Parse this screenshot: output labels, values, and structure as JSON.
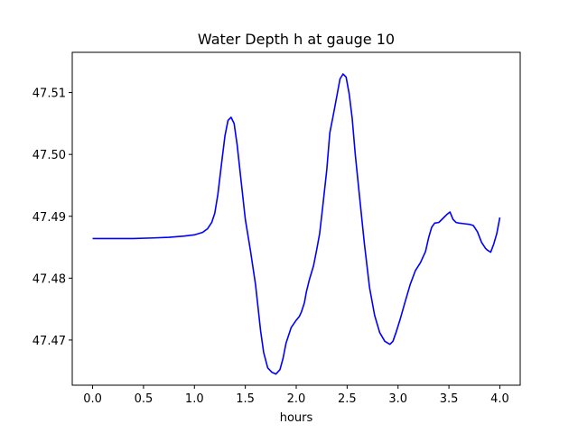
{
  "chart_data": {
    "type": "line",
    "title": "Water Depth h at gauge 10",
    "xlabel": "hours",
    "ylabel": "",
    "xlim": [
      -0.2,
      4.2
    ],
    "ylim": [
      47.4627,
      47.5165
    ],
    "xticks": [
      0.0,
      0.5,
      1.0,
      1.5,
      2.0,
      2.5,
      3.0,
      3.5,
      4.0
    ],
    "xtick_labels": [
      "0.0",
      "0.5",
      "1.0",
      "1.5",
      "2.0",
      "2.5",
      "3.0",
      "3.5",
      "4.0"
    ],
    "yticks": [
      47.47,
      47.48,
      47.49,
      47.5,
      47.51
    ],
    "ytick_labels": [
      "47.47",
      "47.48",
      "47.49",
      "47.50",
      "47.51"
    ],
    "grid": false,
    "series": [
      {
        "color": "#0000ff",
        "x": [
          0.0,
          0.2,
          0.4,
          0.6,
          0.75,
          0.9,
          1.0,
          1.08,
          1.13,
          1.17,
          1.2,
          1.23,
          1.27,
          1.3,
          1.33,
          1.36,
          1.39,
          1.42,
          1.46,
          1.5,
          1.55,
          1.6,
          1.65,
          1.68,
          1.72,
          1.76,
          1.8,
          1.84,
          1.87,
          1.9,
          1.95,
          2.0,
          2.03,
          2.05,
          2.08,
          2.1,
          2.13,
          2.17,
          2.2,
          2.23,
          2.26,
          2.3,
          2.33,
          2.36,
          2.4,
          2.43,
          2.46,
          2.49,
          2.52,
          2.55,
          2.58,
          2.62,
          2.67,
          2.72,
          2.77,
          2.82,
          2.87,
          2.92,
          2.95,
          2.98,
          3.02,
          3.07,
          3.12,
          3.17,
          3.22,
          3.27,
          3.3,
          3.33,
          3.36,
          3.4,
          3.45,
          3.48,
          3.51,
          3.54,
          3.57,
          3.6,
          3.65,
          3.7,
          3.74,
          3.78,
          3.82,
          3.86,
          3.88,
          3.91,
          3.94,
          3.97,
          4.0
        ],
        "y": [
          47.4864,
          47.4864,
          47.4864,
          47.4865,
          47.4866,
          47.4868,
          47.487,
          47.4874,
          47.488,
          47.489,
          47.4905,
          47.4935,
          47.499,
          47.503,
          47.5055,
          47.506,
          47.505,
          47.5015,
          47.4955,
          47.4895,
          47.4845,
          47.479,
          47.4715,
          47.468,
          47.4655,
          47.4648,
          47.4645,
          47.4652,
          47.467,
          47.4695,
          47.472,
          47.4732,
          47.4738,
          47.4745,
          47.476,
          47.4778,
          47.4798,
          47.482,
          47.4845,
          47.4872,
          47.4915,
          47.4975,
          47.5035,
          47.506,
          47.5095,
          47.5122,
          47.513,
          47.5125,
          47.5098,
          47.5058,
          47.5,
          47.4935,
          47.4855,
          47.4785,
          47.474,
          47.4712,
          47.4698,
          47.4693,
          47.4698,
          47.4712,
          47.4733,
          47.4762,
          47.479,
          47.4812,
          47.4825,
          47.4843,
          47.4865,
          47.4882,
          47.4889,
          47.489,
          47.4898,
          47.4903,
          47.4907,
          47.4895,
          47.489,
          47.4889,
          47.4888,
          47.4887,
          47.4885,
          47.4875,
          47.4858,
          47.4848,
          47.4845,
          47.4842,
          47.4855,
          47.4872,
          47.4898
        ]
      }
    ]
  }
}
